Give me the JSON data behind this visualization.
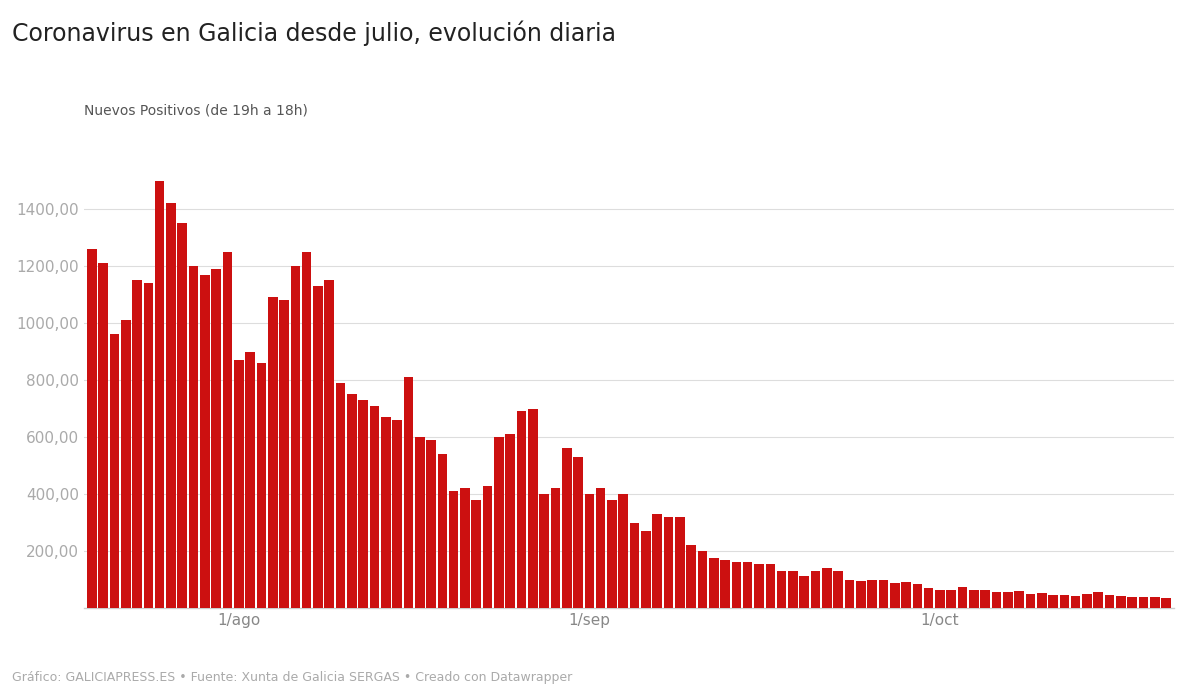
{
  "title": "Coronavirus en Galicia desde julio, evolución diaria",
  "ylabel": "Nuevos Positivos (de 19h a 18h)",
  "footer": "Gráfico: GALICIAPRESS.ES • Fuente: Xunta de Galicia SERGAS • Creado con Datawrapper",
  "bar_color": "#cc1010",
  "background_color": "#ffffff",
  "ylim": [
    0,
    1600
  ],
  "yticks": [
    200,
    400,
    600,
    800,
    1000,
    1200,
    1400
  ],
  "x_tick_labels": [
    "1/ago",
    "1/sep",
    "1/oct"
  ],
  "values": [
    1260,
    1210,
    960,
    1010,
    1150,
    1140,
    1500,
    1420,
    1350,
    1200,
    1170,
    1190,
    1250,
    870,
    900,
    860,
    1090,
    1080,
    1200,
    1250,
    1130,
    1150,
    790,
    750,
    730,
    710,
    670,
    660,
    810,
    600,
    590,
    540,
    410,
    420,
    380,
    430,
    600,
    610,
    690,
    700,
    400,
    420,
    560,
    530,
    400,
    420,
    380,
    400,
    300,
    270,
    330,
    320,
    320,
    220,
    200,
    175,
    170,
    162,
    160,
    155,
    155,
    130,
    130,
    112,
    130,
    140,
    130,
    100,
    95,
    100,
    98,
    87,
    90,
    85,
    72,
    65,
    65,
    75,
    65,
    62,
    55,
    55,
    60,
    50,
    52,
    45,
    45,
    42,
    50,
    55,
    45,
    42,
    40,
    38,
    38,
    35
  ],
  "x_tick_positions": [
    13,
    44,
    75
  ],
  "title_fontsize": 17,
  "subtitle_fontsize": 10,
  "tick_fontsize": 11,
  "footer_fontsize": 9
}
